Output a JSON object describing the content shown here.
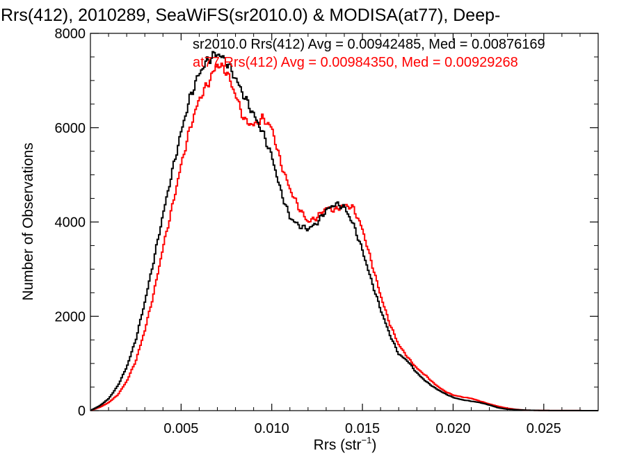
{
  "chart_data": {
    "type": "line",
    "title": "Rrs(412), 2010289, SeaWiFS(sr2010.0) & MODISA(at77), Deep-",
    "xlabel_main": "Rrs (str",
    "xlabel_exp": "−1",
    "xlabel_close": ")",
    "ylabel": "Number of Observations",
    "xlim": [
      0.0,
      0.028
    ],
    "ylim": [
      0,
      8000
    ],
    "xticks": [
      0.005,
      0.01,
      0.015,
      0.02,
      0.025
    ],
    "xtick_labels": [
      "0.005",
      "0.010",
      "0.015",
      "0.020",
      "0.025"
    ],
    "yticks": [
      0,
      2000,
      4000,
      6000,
      8000
    ],
    "ytick_labels": [
      "0",
      "2000",
      "4000",
      "6000",
      "8000"
    ],
    "grid": false,
    "legend_position": "top-right",
    "series": [
      {
        "name": "sr2010.0 Rrs(412) Avg = 0.00942485, Med = 0.00876169",
        "color": "#000000",
        "points": [
          [
            0.0,
            0
          ],
          [
            0.0005,
            100
          ],
          [
            0.001,
            250
          ],
          [
            0.0015,
            520
          ],
          [
            0.002,
            920
          ],
          [
            0.0025,
            1500
          ],
          [
            0.003,
            2300
          ],
          [
            0.0035,
            3200
          ],
          [
            0.004,
            4150
          ],
          [
            0.0045,
            5050
          ],
          [
            0.005,
            5900
          ],
          [
            0.0055,
            6650
          ],
          [
            0.006,
            7150
          ],
          [
            0.0065,
            7450
          ],
          [
            0.007,
            7580
          ],
          [
            0.0075,
            7400
          ],
          [
            0.008,
            7050
          ],
          [
            0.0085,
            6650
          ],
          [
            0.009,
            6280
          ],
          [
            0.0095,
            5900
          ],
          [
            0.01,
            5400
          ],
          [
            0.0105,
            4650
          ],
          [
            0.011,
            4100
          ],
          [
            0.0115,
            3920
          ],
          [
            0.012,
            3850
          ],
          [
            0.0125,
            3980
          ],
          [
            0.013,
            4250
          ],
          [
            0.0135,
            4380
          ],
          [
            0.014,
            4320
          ],
          [
            0.0145,
            3950
          ],
          [
            0.015,
            3400
          ],
          [
            0.0155,
            2750
          ],
          [
            0.016,
            2150
          ],
          [
            0.0165,
            1620
          ],
          [
            0.017,
            1200
          ],
          [
            0.0175,
            1050
          ],
          [
            0.018,
            800
          ],
          [
            0.0185,
            620
          ],
          [
            0.019,
            480
          ],
          [
            0.0195,
            370
          ],
          [
            0.02,
            280
          ],
          [
            0.0205,
            230
          ],
          [
            0.021,
            200
          ],
          [
            0.0215,
            170
          ],
          [
            0.022,
            120
          ],
          [
            0.0225,
            60
          ],
          [
            0.023,
            30
          ],
          [
            0.024,
            10
          ],
          [
            0.025,
            3
          ],
          [
            0.028,
            0
          ]
        ]
      },
      {
        "name": "at77 Rrs(412) Avg = 0.00984350, Med = 0.00929268",
        "color": "#ff0000",
        "points": [
          [
            0.0,
            0
          ],
          [
            0.0005,
            70
          ],
          [
            0.001,
            170
          ],
          [
            0.0015,
            330
          ],
          [
            0.002,
            620
          ],
          [
            0.0025,
            1050
          ],
          [
            0.003,
            1700
          ],
          [
            0.0035,
            2500
          ],
          [
            0.004,
            3450
          ],
          [
            0.0045,
            4300
          ],
          [
            0.005,
            5200
          ],
          [
            0.0055,
            6000
          ],
          [
            0.006,
            6600
          ],
          [
            0.0065,
            6950
          ],
          [
            0.007,
            7350
          ],
          [
            0.0075,
            7200
          ],
          [
            0.008,
            6700
          ],
          [
            0.0085,
            6150
          ],
          [
            0.009,
            6050
          ],
          [
            0.0095,
            6200
          ],
          [
            0.01,
            6000
          ],
          [
            0.0105,
            5250
          ],
          [
            0.011,
            4700
          ],
          [
            0.0115,
            4300
          ],
          [
            0.012,
            4000
          ],
          [
            0.0125,
            4100
          ],
          [
            0.013,
            4300
          ],
          [
            0.0135,
            4250
          ],
          [
            0.014,
            4360
          ],
          [
            0.0145,
            4300
          ],
          [
            0.015,
            3850
          ],
          [
            0.0155,
            3150
          ],
          [
            0.016,
            2450
          ],
          [
            0.0165,
            1850
          ],
          [
            0.017,
            1400
          ],
          [
            0.0175,
            1130
          ],
          [
            0.018,
            900
          ],
          [
            0.0185,
            740
          ],
          [
            0.019,
            560
          ],
          [
            0.0195,
            420
          ],
          [
            0.02,
            330
          ],
          [
            0.0205,
            290
          ],
          [
            0.021,
            260
          ],
          [
            0.0215,
            200
          ],
          [
            0.022,
            140
          ],
          [
            0.0225,
            90
          ],
          [
            0.023,
            50
          ],
          [
            0.0235,
            25
          ],
          [
            0.024,
            10
          ],
          [
            0.025,
            3
          ],
          [
            0.028,
            0
          ]
        ]
      }
    ]
  }
}
